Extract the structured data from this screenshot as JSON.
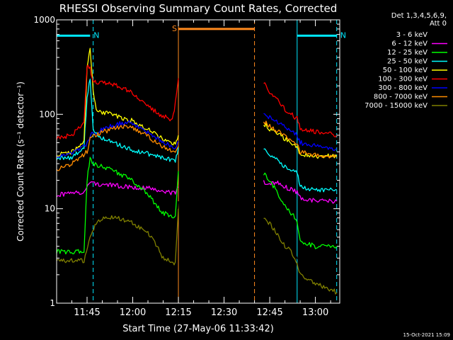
{
  "chart_data": {
    "type": "line",
    "title": "RHESSI Observing Summary Count Rates, Corrected",
    "xlabel": "Start Time (27-May-06 11:33:42)",
    "ylabel": "Corrected Count Rate (s⁻¹ detector⁻¹)",
    "yscale": "log",
    "xlim": [
      "11:35",
      "13:08"
    ],
    "ylim": [
      1,
      1000
    ],
    "x_ticks": [
      "11:45",
      "12:00",
      "12:15",
      "12:30",
      "12:45",
      "13:00"
    ],
    "y_ticks": [
      {
        "label": "1",
        "value": 1
      },
      {
        "label": "10",
        "value": 10
      },
      {
        "label": "100",
        "value": 100
      },
      {
        "label": "1000",
        "value": 1000
      }
    ],
    "legend_header": [
      "Det 1,3,4,5,6,9,",
      "Att 0"
    ],
    "legend_placement": "right",
    "timestamp": "15-Oct-2021 15:09",
    "annotations": [
      {
        "label": "N",
        "color": "#00e8ff",
        "bar": [
          "11:35",
          "11:46"
        ],
        "y": 680,
        "lines": [
          {
            "x": "11:35",
            "style": "solid"
          },
          {
            "x": "11:47",
            "style": "dashed"
          }
        ]
      },
      {
        "label": "N",
        "color": "#00e8ff",
        "bar": [
          "12:54",
          "13:07"
        ],
        "y": 680,
        "lines": [
          {
            "x": "12:54",
            "style": "solid"
          },
          {
            "x": "13:07",
            "style": "dashed"
          }
        ]
      },
      {
        "label": "S",
        "color": "#ff8a1e",
        "bar": [
          "12:15",
          "12:40"
        ],
        "y": 800,
        "lines": [
          {
            "x": "12:15",
            "style": "solid"
          },
          {
            "x": "12:40",
            "style": "dashed"
          }
        ]
      }
    ],
    "series": [
      {
        "name": "3 - 6 keV",
        "color": "#000000",
        "segments": [
          {
            "x": [
              "11:35",
              "11:45",
              "11:46",
              "11:48",
              "11:50",
              "11:55",
              "12:00",
              "12:05",
              "12:08",
              "12:10",
              "12:12",
              "12:14",
              "12:15"
            ],
            "y": [
              3.5,
              3.5,
              6,
              9,
              10,
              9,
              7.5,
              6,
              5,
              4,
              3.5,
              3.5,
              12
            ]
          },
          {
            "x": [
              "12:43",
              "12:45",
              "12:48",
              "12:50",
              "12:52",
              "12:54",
              "12:55",
              "13:00",
              "13:05",
              "13:07"
            ],
            "y": [
              10,
              8,
              6,
              5,
              4,
              3,
              2.5,
              1.5,
              1.3,
              1.2
            ]
          }
        ]
      },
      {
        "name": "6 - 12 keV",
        "color": "#ff00ff",
        "segments": [
          {
            "x": [
              "11:35",
              "11:40",
              "11:44",
              "11:46",
              "11:50",
              "11:55",
              "12:00",
              "12:05",
              "12:10",
              "12:14",
              "12:15"
            ],
            "y": [
              14,
              14.5,
              15,
              19,
              18,
              17.5,
              17,
              16.5,
              15.5,
              14.5,
              17
            ]
          },
          {
            "x": [
              "12:43",
              "12:45",
              "12:48",
              "12:50",
              "12:52",
              "12:54",
              "12:55",
              "13:00",
              "13:05",
              "13:07"
            ],
            "y": [
              19,
              19,
              18.5,
              17,
              16,
              15,
              13,
              12,
              12,
              12
            ]
          }
        ]
      },
      {
        "name": "12 - 25 keV",
        "color": "#00ff00",
        "segments": [
          {
            "x": [
              "11:35",
              "11:44",
              "11:45",
              "11:46",
              "11:47",
              "11:50",
              "11:55",
              "12:00",
              "12:05",
              "12:10",
              "12:14",
              "12:15"
            ],
            "y": [
              3.5,
              3.5,
              20,
              35,
              30,
              28,
              24,
              20,
              14,
              9,
              8,
              25
            ]
          },
          {
            "x": [
              "12:43",
              "12:45",
              "12:48",
              "12:50",
              "12:52",
              "12:54",
              "12:55",
              "13:00",
              "13:05",
              "13:07"
            ],
            "y": [
              24,
              20,
              14,
              11,
              9,
              7.5,
              4.5,
              4,
              4,
              4
            ]
          }
        ]
      },
      {
        "name": "25 - 50 keV",
        "color": "#00ffff",
        "segments": [
          {
            "x": [
              "11:35",
              "11:40",
              "11:44",
              "11:45",
              "11:46",
              "11:47",
              "11:50",
              "11:55",
              "12:00",
              "12:05",
              "12:10",
              "12:14",
              "12:15"
            ],
            "y": [
              34,
              35,
              45,
              150,
              240,
              70,
              55,
              48,
              42,
              38,
              35,
              32,
              45
            ]
          },
          {
            "x": [
              "12:43",
              "12:45",
              "12:48",
              "12:50",
              "12:52",
              "12:54",
              "12:55",
              "13:00",
              "13:05",
              "13:07"
            ],
            "y": [
              45,
              38,
              31,
              28,
              26,
              24,
              17,
              16,
              16,
              16
            ]
          }
        ]
      },
      {
        "name": "50 - 100 keV",
        "color": "#ffff00",
        "segments": [
          {
            "x": [
              "11:35",
              "11:40",
              "11:44",
              "11:45",
              "11:46",
              "11:47",
              "11:48",
              "11:50",
              "11:55",
              "12:00",
              "12:05",
              "12:10",
              "12:14",
              "12:15"
            ],
            "y": [
              37,
              40,
              50,
              300,
              520,
              180,
              115,
              105,
              95,
              85,
              70,
              55,
              48,
              60
            ]
          },
          {
            "x": [
              "12:43",
              "12:45",
              "12:48",
              "12:50",
              "12:52",
              "12:54",
              "12:55",
              "13:00",
              "13:05",
              "13:07"
            ],
            "y": [
              80,
              70,
              62,
              55,
              50,
              45,
              38,
              36,
              36,
              36
            ]
          }
        ]
      },
      {
        "name": "100 - 300 keV",
        "color": "#ff0000",
        "segments": [
          {
            "x": [
              "11:35",
              "11:40",
              "11:44",
              "11:45",
              "11:46",
              "11:47",
              "11:48",
              "11:50",
              "11:55",
              "12:00",
              "12:05",
              "12:10",
              "12:13",
              "12:14",
              "12:15"
            ],
            "y": [
              55,
              60,
              80,
              330,
              300,
              230,
              220,
              215,
              200,
              170,
              120,
              95,
              88,
              130,
              240
            ]
          },
          {
            "x": [
              "12:43",
              "12:45",
              "12:48",
              "12:50",
              "12:52",
              "12:54",
              "12:55",
              "13:00",
              "13:05",
              "13:07"
            ],
            "y": [
              220,
              175,
              140,
              110,
              100,
              90,
              70,
              65,
              62,
              60
            ]
          }
        ]
      },
      {
        "name": "300 - 800 keV",
        "color": "#0000ff",
        "segments": [
          {
            "x": [
              "11:35",
              "11:40",
              "11:45",
              "11:46",
              "11:50",
              "11:55",
              "11:58",
              "12:00",
              "12:05",
              "12:10",
              "12:14",
              "12:15"
            ],
            "y": [
              35,
              38,
              48,
              60,
              70,
              78,
              82,
              80,
              65,
              50,
              45,
              52
            ]
          },
          {
            "x": [
              "12:43",
              "12:45",
              "12:48",
              "12:50",
              "12:52",
              "12:54",
              "12:55",
              "13:00",
              "13:05",
              "13:07"
            ],
            "y": [
              105,
              92,
              82,
              72,
              65,
              60,
              50,
              46,
              44,
              43
            ]
          }
        ]
      },
      {
        "name": "800 - 7000 keV",
        "color": "#ff8c00",
        "segments": [
          {
            "x": [
              "11:35",
              "11:40",
              "11:45",
              "11:46",
              "11:50",
              "11:55",
              "11:58",
              "12:00",
              "12:05",
              "12:10",
              "12:14",
              "12:15"
            ],
            "y": [
              26,
              30,
              40,
              55,
              65,
              72,
              75,
              72,
              58,
              45,
              40,
              46
            ]
          },
          {
            "x": [
              "12:43",
              "12:45",
              "12:48",
              "12:50",
              "12:52",
              "12:54",
              "12:55",
              "13:00",
              "13:05",
              "13:07"
            ],
            "y": [
              85,
              75,
              65,
              58,
              52,
              48,
              40,
              37,
              35,
              35
            ]
          }
        ]
      },
      {
        "name": "7000 - 15000 keV",
        "color": "#808000",
        "segments": [
          {
            "x": [
              "11:35",
              "11:44",
              "11:46",
              "11:48",
              "11:50",
              "11:55",
              "12:00",
              "12:05",
              "12:08",
              "12:10",
              "12:12",
              "12:14",
              "12:15"
            ],
            "y": [
              2.8,
              2.8,
              5,
              7,
              8,
              8,
              7,
              5.5,
              4,
              3,
              2.8,
              2.6,
              10
            ]
          },
          {
            "x": [
              "12:43",
              "12:45",
              "12:48",
              "12:50",
              "12:52",
              "12:54",
              "12:55",
              "13:00",
              "13:05",
              "13:07"
            ],
            "y": [
              8,
              7,
              5,
              4,
              3.5,
              2.5,
              2,
              1.6,
              1.4,
              1.3
            ]
          }
        ]
      }
    ]
  }
}
